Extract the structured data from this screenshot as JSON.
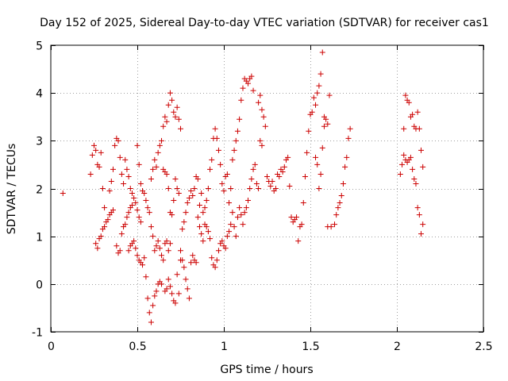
{
  "chart_data": {
    "type": "scatter",
    "title": "Day 152 of 2025, Sidereal Day-to-day VTEC variation (SDTVAR) for receiver cas1",
    "xlabel": "GPS time / hours",
    "ylabel": "SDTVAR / TECUs",
    "xlim": [
      0,
      2.5
    ],
    "ylim": [
      -1,
      5
    ],
    "xticks": [
      0,
      0.5,
      1,
      1.5,
      2,
      2.5
    ],
    "xtick_labels": [
      "0",
      "0.5",
      "1",
      "1.5",
      "2",
      "2.5"
    ],
    "yticks": [
      -1,
      0,
      1,
      2,
      3,
      4,
      5
    ],
    "ytick_labels": [
      "-1",
      "0",
      "1",
      "2",
      "3",
      "4",
      "5"
    ],
    "grid": true,
    "marker": "+",
    "color": "#cc0000",
    "series": [
      {
        "name": "SDTVAR",
        "points": [
          [
            0.07,
            1.9
          ],
          [
            0.23,
            2.3
          ],
          [
            0.24,
            2.7
          ],
          [
            0.25,
            2.9
          ],
          [
            0.26,
            2.8
          ],
          [
            0.27,
            2.5
          ],
          [
            0.28,
            2.45
          ],
          [
            0.29,
            2.75
          ],
          [
            0.3,
            2.0
          ],
          [
            0.31,
            1.6
          ],
          [
            0.26,
            0.85
          ],
          [
            0.27,
            0.75
          ],
          [
            0.28,
            0.95
          ],
          [
            0.29,
            1.0
          ],
          [
            0.3,
            1.15
          ],
          [
            0.31,
            1.2
          ],
          [
            0.32,
            1.3
          ],
          [
            0.33,
            1.35
          ],
          [
            0.34,
            1.45
          ],
          [
            0.35,
            1.5
          ],
          [
            0.36,
            1.55
          ],
          [
            0.34,
            1.95
          ],
          [
            0.35,
            2.15
          ],
          [
            0.36,
            2.4
          ],
          [
            0.37,
            2.9
          ],
          [
            0.38,
            3.05
          ],
          [
            0.39,
            3.0
          ],
          [
            0.4,
            2.65
          ],
          [
            0.41,
            2.3
          ],
          [
            0.42,
            2.1
          ],
          [
            0.38,
            0.8
          ],
          [
            0.39,
            0.65
          ],
          [
            0.4,
            0.7
          ],
          [
            0.41,
            1.05
          ],
          [
            0.42,
            1.2
          ],
          [
            0.43,
            1.25
          ],
          [
            0.44,
            1.4
          ],
          [
            0.45,
            1.5
          ],
          [
            0.46,
            1.6
          ],
          [
            0.47,
            1.65
          ],
          [
            0.43,
            2.6
          ],
          [
            0.44,
            2.4
          ],
          [
            0.45,
            2.25
          ],
          [
            0.46,
            2.0
          ],
          [
            0.47,
            1.9
          ],
          [
            0.48,
            1.8
          ],
          [
            0.49,
            1.7
          ],
          [
            0.5,
            1.55
          ],
          [
            0.51,
            1.4
          ],
          [
            0.52,
            1.3
          ],
          [
            0.45,
            0.7
          ],
          [
            0.46,
            0.8
          ],
          [
            0.47,
            0.85
          ],
          [
            0.48,
            0.9
          ],
          [
            0.49,
            0.75
          ],
          [
            0.5,
            0.6
          ],
          [
            0.51,
            0.5
          ],
          [
            0.52,
            0.45
          ],
          [
            0.53,
            0.4
          ],
          [
            0.54,
            0.55
          ],
          [
            0.5,
            2.9
          ],
          [
            0.51,
            2.5
          ],
          [
            0.52,
            2.1
          ],
          [
            0.53,
            1.95
          ],
          [
            0.54,
            1.9
          ],
          [
            0.55,
            1.75
          ],
          [
            0.56,
            1.6
          ],
          [
            0.57,
            1.5
          ],
          [
            0.58,
            1.2
          ],
          [
            0.59,
            1.0
          ],
          [
            0.55,
            0.15
          ],
          [
            0.56,
            -0.3
          ],
          [
            0.57,
            -0.6
          ],
          [
            0.58,
            -0.8
          ],
          [
            0.59,
            -0.45
          ],
          [
            0.6,
            -0.25
          ],
          [
            0.61,
            -0.15
          ],
          [
            0.62,
            0.0
          ],
          [
            0.63,
            0.05
          ],
          [
            0.64,
            0.0
          ],
          [
            0.58,
            2.2
          ],
          [
            0.59,
            2.4
          ],
          [
            0.6,
            2.6
          ],
          [
            0.61,
            2.45
          ],
          [
            0.62,
            2.75
          ],
          [
            0.63,
            2.9
          ],
          [
            0.64,
            3.0
          ],
          [
            0.65,
            3.3
          ],
          [
            0.66,
            3.5
          ],
          [
            0.67,
            3.4
          ],
          [
            0.6,
            0.7
          ],
          [
            0.61,
            0.8
          ],
          [
            0.62,
            0.9
          ],
          [
            0.63,
            0.75
          ],
          [
            0.64,
            0.6
          ],
          [
            0.65,
            0.5
          ],
          [
            0.66,
            0.85
          ],
          [
            0.67,
            0.9
          ],
          [
            0.68,
            0.7
          ],
          [
            0.69,
            0.85
          ],
          [
            0.65,
            2.4
          ],
          [
            0.66,
            2.35
          ],
          [
            0.67,
            2.3
          ],
          [
            0.68,
            2.0
          ],
          [
            0.69,
            1.5
          ],
          [
            0.7,
            1.45
          ],
          [
            0.71,
            1.75
          ],
          [
            0.72,
            2.2
          ],
          [
            0.73,
            2.0
          ],
          [
            0.74,
            1.9
          ],
          [
            0.66,
            -0.15
          ],
          [
            0.67,
            -0.1
          ],
          [
            0.68,
            0.1
          ],
          [
            0.69,
            -0.05
          ],
          [
            0.7,
            -0.2
          ],
          [
            0.71,
            -0.35
          ],
          [
            0.72,
            -0.4
          ],
          [
            0.73,
            0.2
          ],
          [
            0.74,
            -0.2
          ],
          [
            0.75,
            0.5
          ],
          [
            0.68,
            3.75
          ],
          [
            0.69,
            4.0
          ],
          [
            0.7,
            3.85
          ],
          [
            0.71,
            3.6
          ],
          [
            0.72,
            3.5
          ],
          [
            0.73,
            3.7
          ],
          [
            0.74,
            3.45
          ],
          [
            0.75,
            3.25
          ],
          [
            0.76,
            1.15
          ],
          [
            0.77,
            1.3
          ],
          [
            0.75,
            0.7
          ],
          [
            0.76,
            0.5
          ],
          [
            0.77,
            0.35
          ],
          [
            0.78,
            0.1
          ],
          [
            0.79,
            -0.1
          ],
          [
            0.8,
            -0.3
          ],
          [
            0.81,
            0.45
          ],
          [
            0.82,
            0.6
          ],
          [
            0.83,
            0.5
          ],
          [
            0.84,
            0.45
          ],
          [
            0.78,
            1.5
          ],
          [
            0.79,
            1.7
          ],
          [
            0.8,
            1.8
          ],
          [
            0.81,
            1.95
          ],
          [
            0.82,
            1.85
          ],
          [
            0.83,
            2.0
          ],
          [
            0.84,
            2.25
          ],
          [
            0.85,
            2.2
          ],
          [
            0.86,
            1.65
          ],
          [
            0.87,
            1.9
          ],
          [
            0.85,
            1.4
          ],
          [
            0.86,
            1.2
          ],
          [
            0.87,
            1.05
          ],
          [
            0.88,
            0.9
          ],
          [
            0.89,
            1.25
          ],
          [
            0.9,
            1.2
          ],
          [
            0.91,
            1.1
          ],
          [
            0.92,
            0.95
          ],
          [
            0.93,
            0.55
          ],
          [
            0.94,
            0.4
          ],
          [
            0.88,
            1.5
          ],
          [
            0.89,
            1.6
          ],
          [
            0.9,
            1.75
          ],
          [
            0.91,
            2.0
          ],
          [
            0.92,
            2.4
          ],
          [
            0.93,
            2.6
          ],
          [
            0.94,
            3.05
          ],
          [
            0.95,
            3.25
          ],
          [
            0.96,
            3.05
          ],
          [
            0.97,
            2.8
          ],
          [
            0.95,
            0.35
          ],
          [
            0.96,
            0.5
          ],
          [
            0.97,
            0.7
          ],
          [
            0.98,
            0.85
          ],
          [
            0.99,
            0.9
          ],
          [
            1.0,
            0.8
          ],
          [
            1.01,
            0.75
          ],
          [
            1.02,
            1.0
          ],
          [
            1.03,
            1.1
          ],
          [
            1.04,
            1.25
          ],
          [
            0.98,
            2.5
          ],
          [
            0.99,
            2.1
          ],
          [
            1.0,
            1.95
          ],
          [
            1.01,
            2.25
          ],
          [
            1.02,
            2.3
          ],
          [
            1.03,
            1.7
          ],
          [
            1.04,
            2.0
          ],
          [
            1.05,
            2.6
          ],
          [
            1.06,
            2.8
          ],
          [
            1.07,
            3.0
          ],
          [
            1.05,
            1.5
          ],
          [
            1.06,
            1.2
          ],
          [
            1.07,
            1.0
          ],
          [
            1.08,
            1.4
          ],
          [
            1.09,
            1.6
          ],
          [
            1.1,
            1.45
          ],
          [
            1.11,
            1.25
          ],
          [
            1.12,
            1.5
          ],
          [
            1.13,
            1.6
          ],
          [
            1.14,
            1.75
          ],
          [
            1.08,
            3.2
          ],
          [
            1.09,
            3.45
          ],
          [
            1.1,
            3.85
          ],
          [
            1.11,
            4.1
          ],
          [
            1.12,
            4.3
          ],
          [
            1.13,
            4.25
          ],
          [
            1.14,
            4.2
          ],
          [
            1.15,
            4.3
          ],
          [
            1.16,
            4.35
          ],
          [
            1.17,
            4.05
          ],
          [
            1.15,
            2.0
          ],
          [
            1.16,
            2.2
          ],
          [
            1.17,
            2.4
          ],
          [
            1.18,
            2.5
          ],
          [
            1.19,
            2.1
          ],
          [
            1.2,
            2.0
          ],
          [
            1.21,
            3.0
          ],
          [
            1.22,
            2.9
          ],
          [
            1.23,
            3.5
          ],
          [
            1.24,
            3.3
          ],
          [
            1.2,
            3.8
          ],
          [
            1.21,
            3.95
          ],
          [
            1.22,
            3.65
          ],
          [
            1.25,
            2.25
          ],
          [
            1.26,
            2.15
          ],
          [
            1.27,
            2.05
          ],
          [
            1.28,
            2.15
          ],
          [
            1.29,
            1.95
          ],
          [
            1.3,
            2.0
          ],
          [
            1.31,
            2.3
          ],
          [
            1.32,
            2.25
          ],
          [
            1.33,
            2.4
          ],
          [
            1.34,
            2.35
          ],
          [
            1.35,
            2.45
          ],
          [
            1.36,
            2.6
          ],
          [
            1.37,
            2.65
          ],
          [
            1.38,
            2.05
          ],
          [
            1.39,
            1.4
          ],
          [
            1.4,
            1.3
          ],
          [
            1.41,
            1.35
          ],
          [
            1.42,
            1.4
          ],
          [
            1.43,
            0.9
          ],
          [
            1.44,
            1.2
          ],
          [
            1.45,
            1.25
          ],
          [
            1.46,
            1.7
          ],
          [
            1.47,
            2.25
          ],
          [
            1.48,
            2.75
          ],
          [
            1.49,
            3.2
          ],
          [
            1.5,
            3.55
          ],
          [
            1.51,
            3.6
          ],
          [
            1.52,
            3.9
          ],
          [
            1.53,
            3.75
          ],
          [
            1.54,
            4.0
          ],
          [
            1.55,
            4.15
          ],
          [
            1.56,
            4.4
          ],
          [
            1.57,
            4.85
          ],
          [
            1.58,
            3.5
          ],
          [
            1.59,
            3.45
          ],
          [
            1.6,
            3.35
          ],
          [
            1.61,
            3.95
          ],
          [
            1.53,
            2.65
          ],
          [
            1.54,
            2.5
          ],
          [
            1.55,
            2.0
          ],
          [
            1.56,
            2.3
          ],
          [
            1.57,
            2.85
          ],
          [
            1.58,
            3.3
          ],
          [
            1.6,
            1.2
          ],
          [
            1.62,
            1.2
          ],
          [
            1.64,
            1.25
          ],
          [
            1.65,
            1.45
          ],
          [
            1.66,
            1.6
          ],
          [
            1.67,
            1.7
          ],
          [
            1.68,
            1.85
          ],
          [
            1.69,
            2.1
          ],
          [
            1.7,
            2.45
          ],
          [
            1.71,
            2.65
          ],
          [
            1.72,
            3.05
          ],
          [
            1.73,
            3.25
          ],
          [
            2.02,
            2.3
          ],
          [
            2.03,
            2.5
          ],
          [
            2.04,
            2.7
          ],
          [
            2.05,
            2.6
          ],
          [
            2.06,
            2.55
          ],
          [
            2.07,
            2.6
          ],
          [
            2.08,
            2.65
          ],
          [
            2.09,
            2.4
          ],
          [
            2.1,
            2.2
          ],
          [
            2.11,
            2.1
          ],
          [
            2.04,
            3.25
          ],
          [
            2.05,
            3.95
          ],
          [
            2.06,
            3.85
          ],
          [
            2.07,
            3.8
          ],
          [
            2.08,
            3.5
          ],
          [
            2.09,
            3.55
          ],
          [
            2.1,
            3.3
          ],
          [
            2.11,
            3.25
          ],
          [
            2.12,
            3.6
          ],
          [
            2.13,
            3.25
          ],
          [
            2.12,
            1.6
          ],
          [
            2.13,
            1.45
          ],
          [
            2.14,
            1.05
          ],
          [
            2.15,
            1.25
          ],
          [
            2.14,
            2.8
          ],
          [
            2.15,
            2.45
          ]
        ]
      }
    ]
  }
}
